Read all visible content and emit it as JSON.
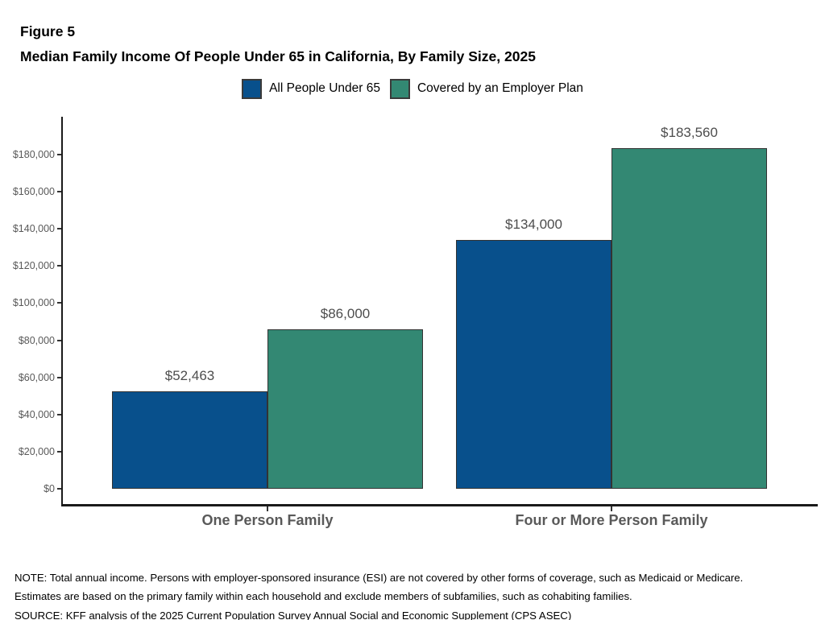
{
  "figure": {
    "label": "Figure 5",
    "title": "Median Family Income Of People Under 65 in California, By Family Size, 2025"
  },
  "chart_data": {
    "type": "bar",
    "categories": [
      "One Person Family",
      "Four or More Person Family"
    ],
    "series": [
      {
        "name": "All People Under 65",
        "color": "#08508C",
        "values": [
          52463,
          134000
        ]
      },
      {
        "name": "Covered by an Employer Plan",
        "color": "#338873",
        "values": [
          86000,
          183560
        ]
      }
    ],
    "value_labels": [
      [
        "$52,463",
        "$134,000"
      ],
      [
        "$86,000",
        "$183,560"
      ]
    ],
    "title": "Median Family Income Of People Under 65 in California, By Family Size, 2025",
    "xlabel": "",
    "ylabel": "",
    "ytick_labels": [
      "$0",
      "$20,000",
      "$40,000",
      "$60,000",
      "$80,000",
      "$100,000",
      "$120,000",
      "$140,000",
      "$160,000",
      "$180,000"
    ],
    "ytick_values": [
      0,
      20000,
      40000,
      60000,
      80000,
      100000,
      120000,
      140000,
      160000,
      180000
    ],
    "ylim": [
      0,
      200000
    ],
    "grid": false,
    "legend_position": "top",
    "bar_border_color": "#333333",
    "axis_color": "#1a1a1a",
    "tick_label_color": "#595959",
    "value_label_color": "#4d4d4d"
  },
  "notes": {
    "note_line1": "NOTE: Total annual income. Persons with employer-sponsored insurance (ESI) are not covered by other forms of coverage, such as Medicaid or Medicare.",
    "note_line2": "Estimates are based on the primary family within each household and exclude members of subfamilies, such as cohabiting families.",
    "source": "SOURCE: KFF analysis of the 2025 Current Population Survey Annual Social and Economic Supplement (CPS ASEC)"
  }
}
